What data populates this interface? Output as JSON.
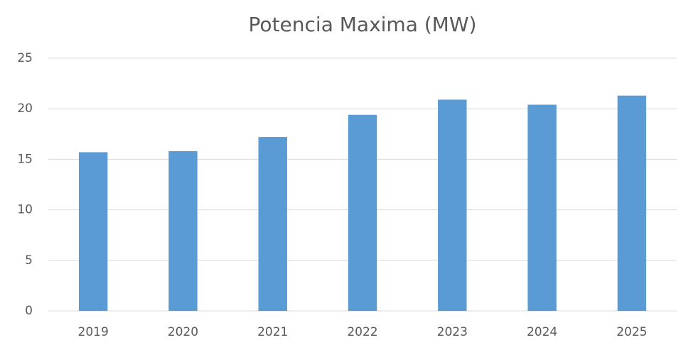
{
  "chart_data": {
    "type": "bar",
    "title": "Potencia Maxima (MW)",
    "categories": [
      "2019",
      "2020",
      "2021",
      "2022",
      "2023",
      "2024",
      "2025"
    ],
    "values": [
      15.7,
      15.8,
      17.2,
      19.4,
      20.9,
      20.4,
      21.3
    ],
    "color": "#5b9bd5",
    "ylim": [
      0,
      25
    ],
    "yticks": [
      0,
      5,
      10,
      15,
      20,
      25
    ],
    "grid": true
  }
}
